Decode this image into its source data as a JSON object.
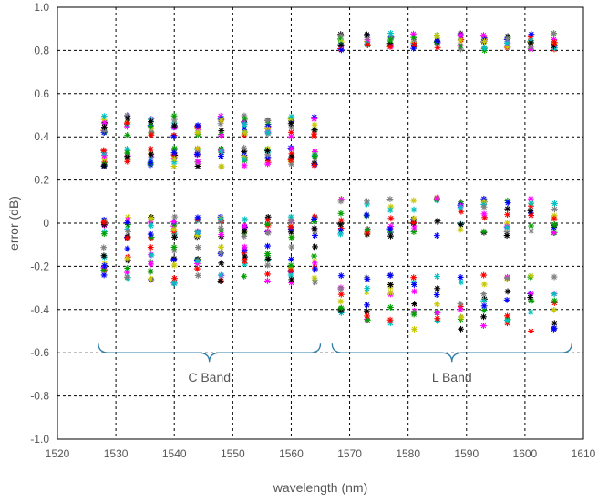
{
  "chart_data": {
    "type": "scatter",
    "title": "",
    "xlabel": "wavelength (nm)",
    "ylabel": "error (dB)",
    "xlim": [
      1520,
      1610
    ],
    "ylim": [
      -1.0,
      1.0
    ],
    "x_ticks": [
      "1520",
      "1530",
      "1540",
      "1550",
      "1560",
      "1570",
      "1580",
      "1590",
      "1600",
      "1610"
    ],
    "y_ticks": [
      "1.0",
      "0.8",
      "0.6",
      "0.4",
      "0.2",
      "0",
      "-0.2",
      "-0.4",
      "-0.6",
      "-0.8",
      "-1.0"
    ],
    "grid": true,
    "marker": "star",
    "series_colors": [
      "#000000",
      "#ff0000",
      "#00a000",
      "#0000ff",
      "#c8c800",
      "#ff00ff",
      "#00c0c0",
      "#808080"
    ],
    "c_band_wavelengths": [
      1528,
      1532,
      1536,
      1540,
      1544,
      1548,
      1552,
      1556,
      1560,
      1564
    ],
    "c_band_clusters": [
      {
        "min": 0.4,
        "max": 0.5
      },
      {
        "min": 0.26,
        "max": 0.35
      },
      {
        "min": -0.07,
        "max": 0.03
      },
      {
        "min": -0.28,
        "max": -0.1
      }
    ],
    "l_band_wavelengths": [
      1568.5,
      1573,
      1577,
      1581,
      1585,
      1589,
      1593,
      1597,
      1601,
      1605
    ],
    "l_band_clusters": [
      {
        "min": 0.8,
        "max": 0.88
      },
      {
        "min": -0.06,
        "max": 0.12
      },
      {
        "min": -0.5,
        "max": -0.24
      }
    ],
    "annotations": [
      {
        "text": "C Band",
        "x_range": [
          1527,
          1565
        ]
      },
      {
        "text": "L Band",
        "x_range": [
          1567,
          1608
        ]
      }
    ]
  }
}
